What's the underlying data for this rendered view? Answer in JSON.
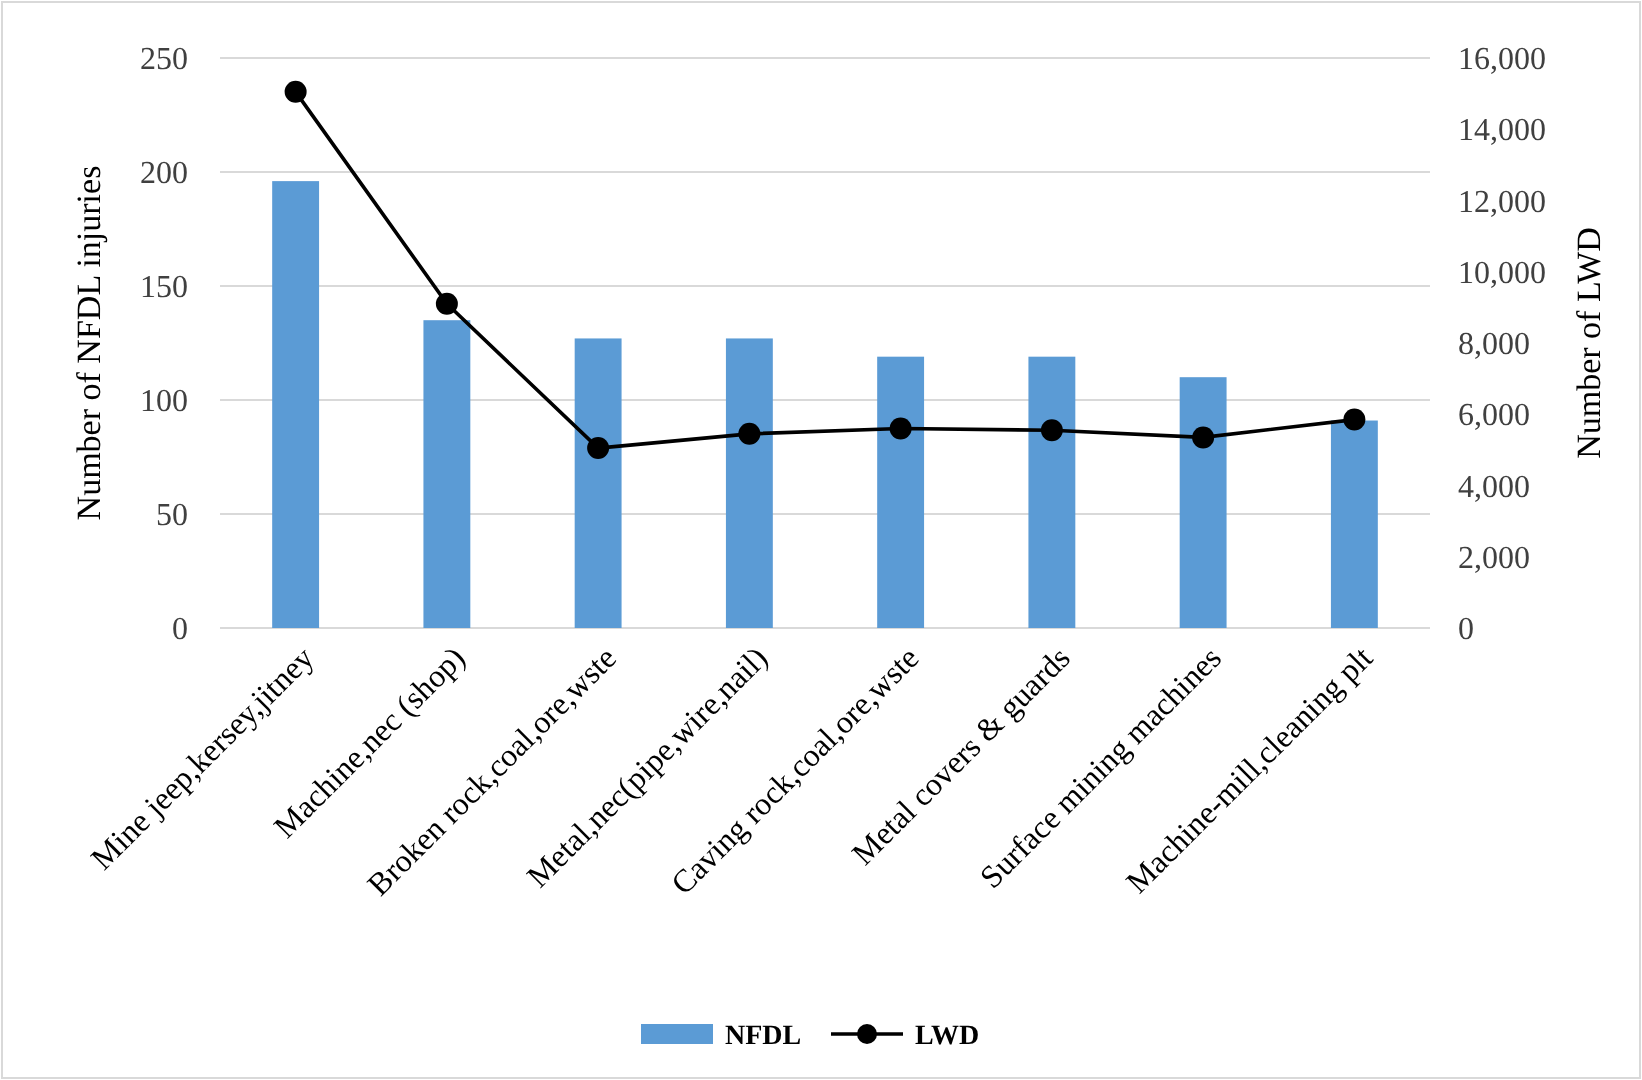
{
  "chart_data": {
    "type": "bar",
    "categories": [
      "Mine jeep,kersey,jitney",
      "Machine,nec (shop)",
      "Broken rock,coal,ore,wste",
      "Metal,nec(pipe,wire,nail)",
      "Caving rock,coal,ore,wste",
      "Metal covers & guards",
      "Surface mining machines",
      "Machine-mill,cleaning plt"
    ],
    "series": [
      {
        "name": "NFDL",
        "color": "#5b9bd5",
        "values": [
          196,
          135,
          127,
          127,
          119,
          119,
          110,
          91
        ]
      },
      {
        "name": "LWD",
        "type": "line",
        "axis": "y2",
        "color": "#000000",
        "marker": "circle",
        "values": [
          15050,
          9100,
          5050,
          5450,
          5600,
          5550,
          5350,
          5850
        ]
      }
    ],
    "ylabel": "Number of NFDL  injuries",
    "y2label": "Number of LWD",
    "ylim": [
      0,
      250
    ],
    "yticks": [
      0,
      50,
      100,
      150,
      200,
      250
    ],
    "y2lim": [
      0,
      16000
    ],
    "y2ticks": [
      {
        "value": 0,
        "label": "0"
      },
      {
        "value": 2000,
        "label": "2,000"
      },
      {
        "value": 4000,
        "label": "4,000"
      },
      {
        "value": 6000,
        "label": "6,000"
      },
      {
        "value": 8000,
        "label": "8,000"
      },
      {
        "value": 10000,
        "label": "10,000"
      },
      {
        "value": 12000,
        "label": "12,000"
      },
      {
        "value": 14000,
        "label": "14,000"
      },
      {
        "value": 16000,
        "label": "16,000"
      }
    ],
    "grid": "y",
    "legend": "bottom"
  }
}
